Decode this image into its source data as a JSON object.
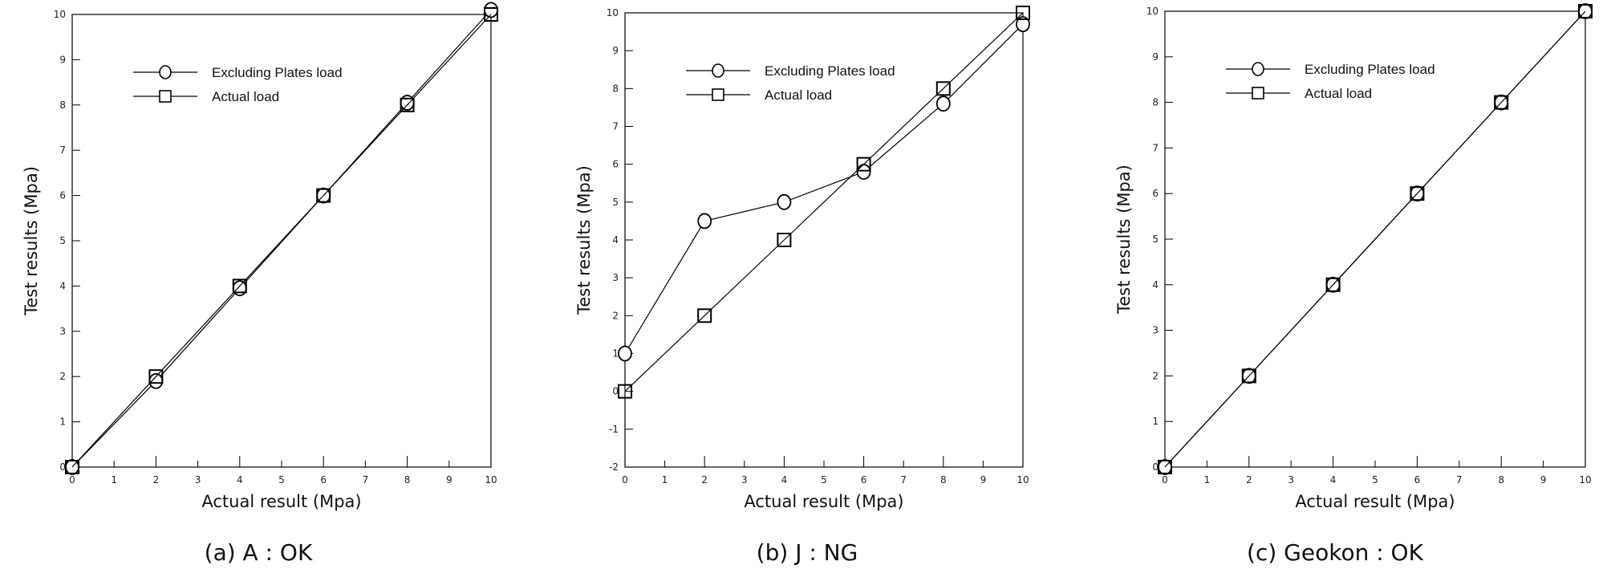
{
  "chart_data": [
    {
      "type": "line",
      "caption": "(a) A : OK",
      "xlabel": "Actual result (Mpa)",
      "ylabel": "Test results (Mpa)",
      "xlim": [
        0,
        10
      ],
      "ylim": [
        0,
        10
      ],
      "xticks": [
        "0",
        "1",
        "2",
        "3",
        "4",
        "5",
        "6",
        "7",
        "8",
        "9",
        "10"
      ],
      "yticks": [
        "0",
        "1",
        "2",
        "3",
        "4",
        "5",
        "6",
        "7",
        "8",
        "9",
        "10"
      ],
      "grid": false,
      "legend_position": "top-left",
      "series": [
        {
          "name": "Excluding Plates load",
          "marker": "circle",
          "x": [
            0,
            2,
            4,
            6,
            8,
            10
          ],
          "y": [
            0,
            1.9,
            3.95,
            6,
            8.05,
            10.1
          ]
        },
        {
          "name": "Actual load",
          "marker": "square",
          "x": [
            0,
            2,
            4,
            6,
            8,
            10
          ],
          "y": [
            0,
            2,
            4,
            6,
            8,
            10
          ]
        }
      ]
    },
    {
      "type": "line",
      "caption": "(b) J : NG",
      "xlabel": "Actual result (Mpa)",
      "ylabel": "Test results (Mpa)",
      "xlim": [
        0,
        10
      ],
      "ylim": [
        -2,
        10
      ],
      "xticks": [
        "0",
        "1",
        "2",
        "3",
        "4",
        "5",
        "6",
        "7",
        "8",
        "9",
        "10"
      ],
      "yticks": [
        "-2",
        "-1",
        "0",
        "1",
        "2",
        "3",
        "4",
        "5",
        "6",
        "7",
        "8",
        "9",
        "10"
      ],
      "grid": false,
      "legend_position": "top-left",
      "series": [
        {
          "name": "Excluding Plates load",
          "marker": "circle",
          "x": [
            0,
            2,
            4,
            6,
            8,
            10
          ],
          "y": [
            1,
            4.5,
            5,
            5.8,
            7.6,
            9.7
          ]
        },
        {
          "name": "Actual load",
          "marker": "square",
          "x": [
            0,
            2,
            4,
            6,
            8,
            10
          ],
          "y": [
            0,
            2,
            4,
            6,
            8,
            10
          ]
        }
      ]
    },
    {
      "type": "line",
      "caption": "(c) Geokon : OK",
      "xlabel": "Actual result (Mpa)",
      "ylabel": "Test results (Mpa)",
      "xlim": [
        0,
        10
      ],
      "ylim": [
        0,
        10
      ],
      "xticks": [
        "0",
        "1",
        "2",
        "3",
        "4",
        "5",
        "6",
        "7",
        "8",
        "9",
        "10"
      ],
      "yticks": [
        "0",
        "1",
        "2",
        "3",
        "4",
        "5",
        "6",
        "7",
        "8",
        "9",
        "10"
      ],
      "grid": false,
      "legend_position": "top-left",
      "series": [
        {
          "name": "Excluding Plates load",
          "marker": "circle",
          "x": [
            0,
            2,
            4,
            6,
            8,
            10
          ],
          "y": [
            0,
            2,
            4,
            6,
            8,
            10
          ]
        },
        {
          "name": "Actual load",
          "marker": "square",
          "x": [
            0,
            2,
            4,
            6,
            8,
            10
          ],
          "y": [
            0,
            2,
            4,
            6,
            8,
            10
          ]
        }
      ]
    }
  ]
}
